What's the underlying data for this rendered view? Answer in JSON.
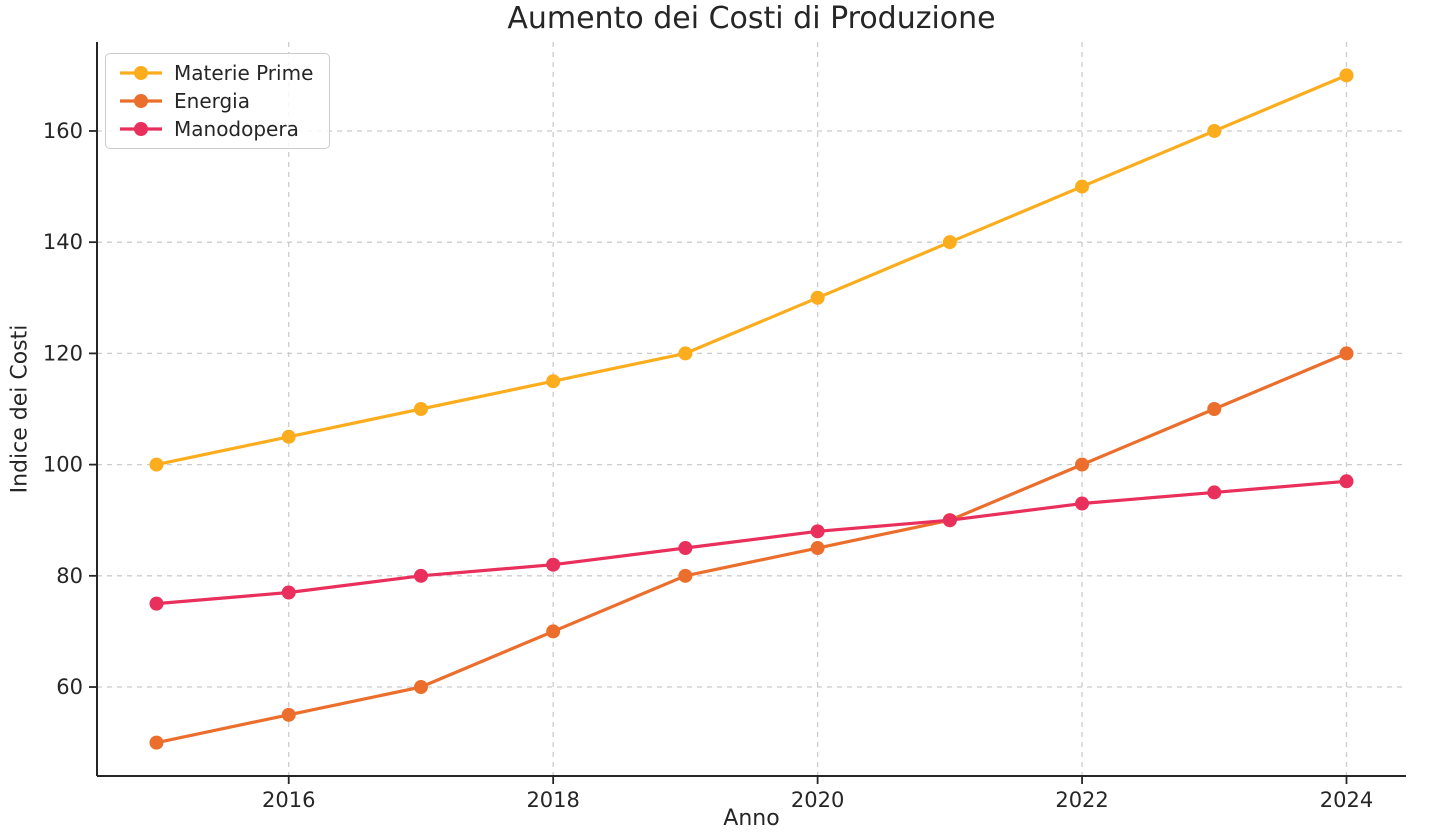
{
  "chart_data": {
    "type": "line",
    "title": "Aumento dei Costi di Produzione",
    "xlabel": "Anno",
    "ylabel": "Indice dei Costi",
    "x": [
      2015,
      2016,
      2017,
      2018,
      2019,
      2020,
      2021,
      2022,
      2023,
      2024
    ],
    "series": [
      {
        "name": "Materie Prime",
        "color": "#FBAD1E",
        "values": [
          100,
          105,
          110,
          115,
          120,
          130,
          140,
          150,
          160,
          170
        ]
      },
      {
        "name": "Energia",
        "color": "#EB6E2C",
        "values": [
          50,
          55,
          60,
          70,
          80,
          85,
          90,
          100,
          110,
          120
        ]
      },
      {
        "name": "Manodopera",
        "color": "#E92F5C",
        "values": [
          75,
          77,
          80,
          82,
          85,
          88,
          90,
          93,
          95,
          97
        ]
      }
    ],
    "xticks": [
      2016,
      2018,
      2020,
      2022,
      2024
    ],
    "yticks": [
      60,
      80,
      100,
      120,
      140,
      160
    ],
    "xlim": [
      2014.55,
      2024.45
    ],
    "ylim": [
      44,
      176
    ],
    "grid": true,
    "grid_style": "dashed",
    "legend_position": "upper left",
    "marker": "circle",
    "background_color": "#ffffff",
    "text_color": "#262626",
    "grid_color": "#cccccc",
    "spine_color": "#262626"
  }
}
